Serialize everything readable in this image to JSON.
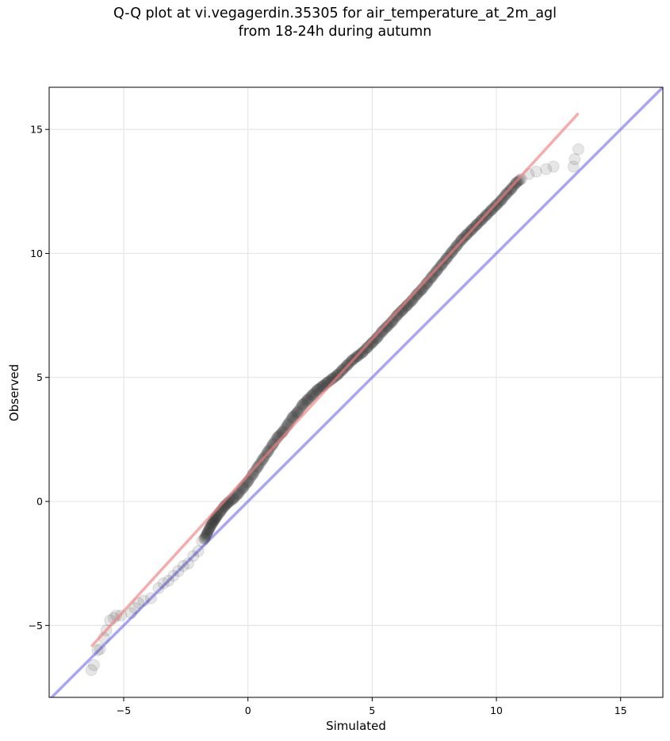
{
  "title": {
    "line1": "Q-Q plot at vi.vegagerdin.35305 for air_temperature_at_2m_agl",
    "line2": "from 18-24h during autumn"
  },
  "chart_data": {
    "type": "scatter",
    "xlabel": "Simulated",
    "ylabel": "Observed",
    "xlim": [
      -8,
      16.7
    ],
    "ylim": [
      -7.9,
      16.7
    ],
    "xticks": [
      -5,
      0,
      5,
      10,
      15
    ],
    "yticks": [
      -5,
      0,
      5,
      10,
      15
    ],
    "xtick_labels": [
      "−5",
      "0",
      "5",
      "10",
      "15"
    ],
    "ytick_labels": [
      "−5",
      "0",
      "5",
      "10",
      "15"
    ],
    "grid": true,
    "colors": {
      "points": "#333333",
      "fit_line": "#f08080",
      "identity_line": "#6b6bef"
    },
    "fit_line": {
      "x": [
        -6.3,
        13.3
      ],
      "y": [
        -5.85,
        15.65
      ]
    },
    "identity_line": {
      "x": [
        -8,
        16.7
      ],
      "y": [
        -8,
        16.7
      ]
    },
    "points": {
      "x": [
        -6.3,
        -6.2,
        -6.05,
        -5.95,
        -5.8,
        -5.7,
        -5.55,
        -5.4,
        -5.3,
        -5.1,
        -4.7,
        -4.55,
        -4.4,
        -4.2,
        -3.9,
        -3.6,
        -3.4,
        -3.2,
        -3.0,
        -2.8,
        -2.6,
        -2.4,
        -2.2,
        -2.0,
        -1.85,
        -1.75,
        -1.65,
        -1.55,
        -1.45,
        -1.35,
        -1.25,
        -1.1,
        -0.95,
        -0.8,
        -0.6,
        -0.4,
        -0.2,
        0.0,
        0.2,
        0.4,
        0.6,
        0.8,
        1.0,
        1.2,
        1.4,
        1.6,
        1.8,
        2.0,
        2.2,
        2.4,
        2.6,
        2.8,
        3.0,
        3.2,
        3.4,
        3.6,
        3.8,
        4.0,
        4.2,
        4.4,
        4.6,
        4.8,
        5.0,
        5.2,
        5.4,
        5.6,
        5.8,
        6.0,
        6.2,
        6.4,
        6.6,
        6.8,
        7.0,
        7.2,
        7.4,
        7.6,
        7.8,
        8.0,
        8.2,
        8.4,
        8.6,
        8.8,
        9.0,
        9.2,
        9.4,
        9.6,
        9.8,
        10.0,
        10.2,
        10.4,
        10.6,
        10.8,
        11.0,
        11.3,
        11.6,
        12.0,
        12.3,
        13.1,
        13.15,
        13.3
      ],
      "y": [
        -6.8,
        -6.6,
        -6.0,
        -5.95,
        -5.5,
        -5.2,
        -4.8,
        -4.7,
        -4.6,
        -4.6,
        -4.5,
        -4.3,
        -4.1,
        -4.0,
        -3.9,
        -3.5,
        -3.3,
        -3.2,
        -3.0,
        -2.8,
        -2.6,
        -2.5,
        -2.2,
        -2.0,
        -1.6,
        -1.5,
        -1.3,
        -1.1,
        -0.9,
        -0.75,
        -0.6,
        -0.4,
        -0.2,
        -0.05,
        0.1,
        0.3,
        0.55,
        0.8,
        1.1,
        1.4,
        1.7,
        2.0,
        2.3,
        2.6,
        2.8,
        3.1,
        3.4,
        3.6,
        3.9,
        4.1,
        4.3,
        4.5,
        4.65,
        4.8,
        4.95,
        5.1,
        5.3,
        5.5,
        5.7,
        5.85,
        6.0,
        6.2,
        6.4,
        6.6,
        6.85,
        7.05,
        7.25,
        7.5,
        7.7,
        7.9,
        8.1,
        8.35,
        8.55,
        8.8,
        9.05,
        9.3,
        9.55,
        9.8,
        10.05,
        10.3,
        10.55,
        10.75,
        10.95,
        11.15,
        11.35,
        11.55,
        11.75,
        11.95,
        12.15,
        12.4,
        12.6,
        12.85,
        13.0,
        13.2,
        13.3,
        13.4,
        13.5,
        13.5,
        13.8,
        14.2
      ]
    }
  }
}
